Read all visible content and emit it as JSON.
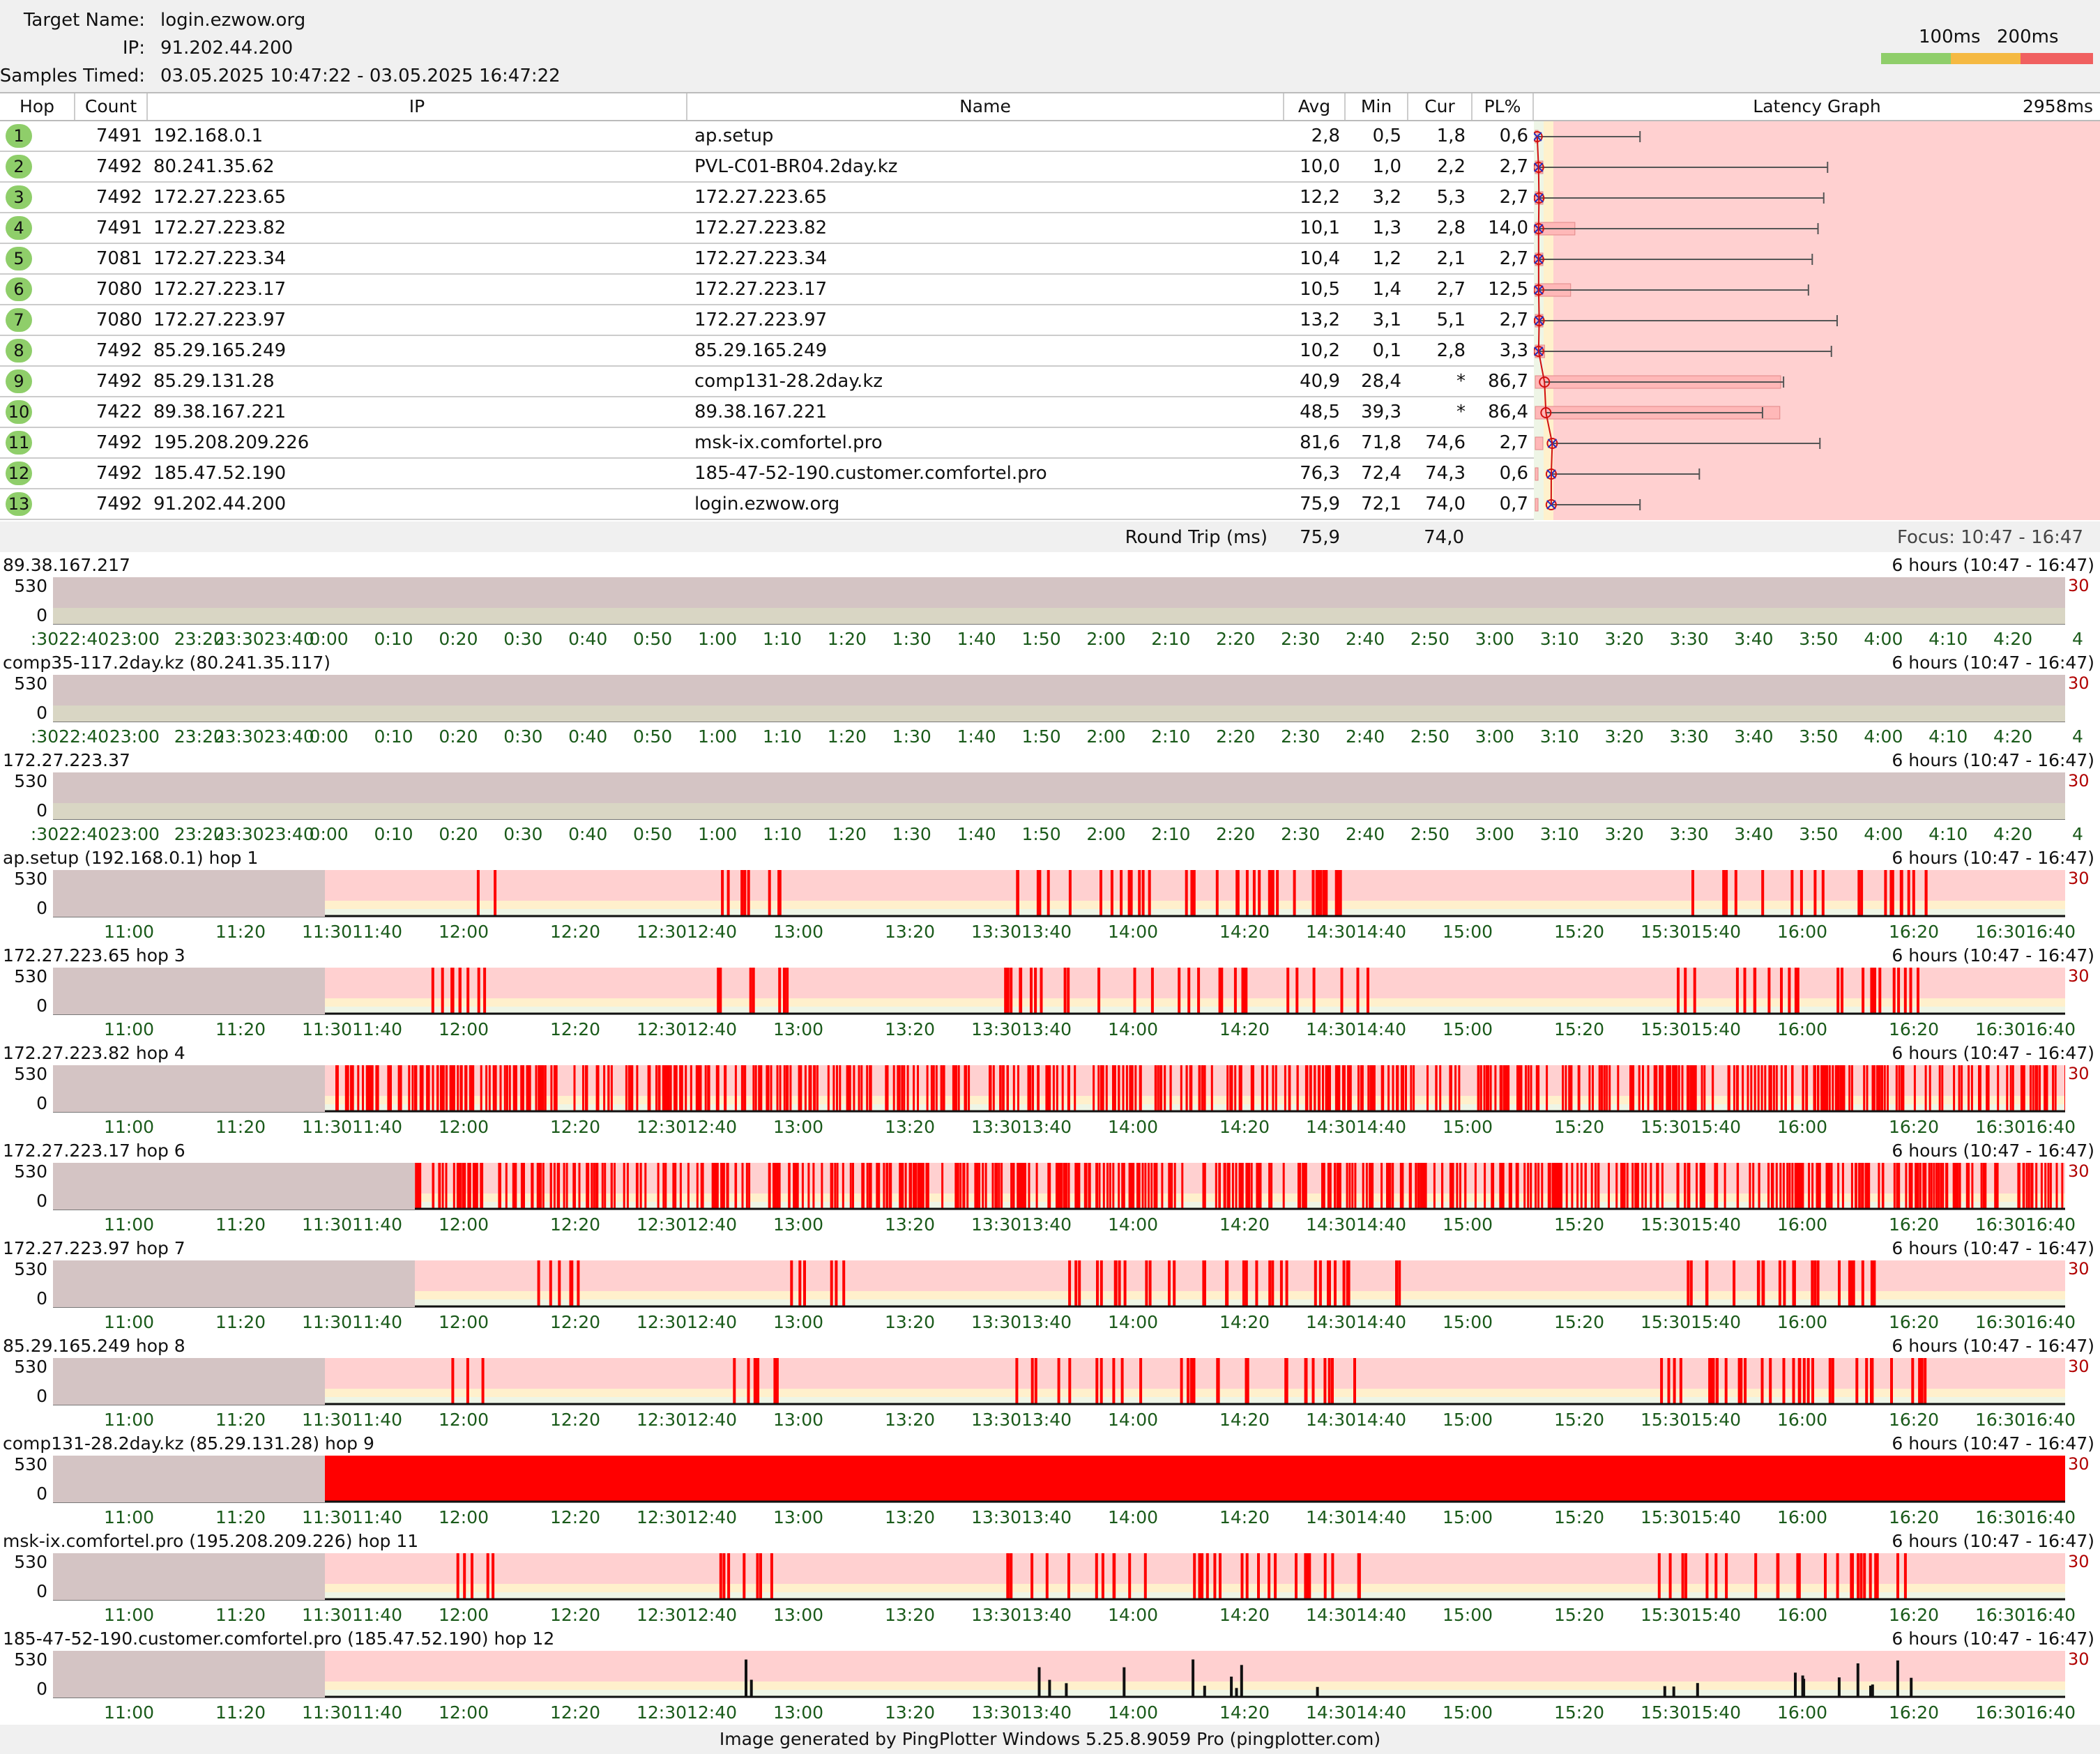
{
  "header": {
    "target_label": "Target Name:",
    "target_value": "login.ezwow.org",
    "ip_label": "IP:",
    "ip_value": "91.202.44.200",
    "samples_label": "Samples Timed:",
    "samples_value": "03.05.2025 10:47:22 - 03.05.2025 16:47:22",
    "legend_100": "100ms",
    "legend_200": "200ms",
    "colors": {
      "good": "#8fce6a",
      "warn": "#f5b942",
      "bad": "#f06060"
    }
  },
  "table": {
    "columns": [
      "Hop",
      "Count",
      "IP",
      "Name",
      "Avg",
      "Min",
      "Cur",
      "PL%",
      "Latency Graph"
    ],
    "graph_max": "2958ms",
    "rows": [
      {
        "hop": "1",
        "count": "7491",
        "ip": "192.168.0.1",
        "name": "ap.setup",
        "avg": "2,8",
        "min": "0,5",
        "cur": "1,8",
        "pl": "0,6",
        "pl_value": 0.6,
        "avg_ms": 2.8,
        "max_ms": 540
      },
      {
        "hop": "2",
        "count": "7492",
        "ip": "80.241.35.62",
        "name": "PVL-C01-BR04.2day.kz",
        "avg": "10,0",
        "min": "1,0",
        "cur": "2,2",
        "pl": "2,7",
        "pl_value": 2.7,
        "avg_ms": 10.0,
        "max_ms": 1520
      },
      {
        "hop": "3",
        "count": "7492",
        "ip": "172.27.223.65",
        "name": "172.27.223.65",
        "avg": "12,2",
        "min": "3,2",
        "cur": "5,3",
        "pl": "2,7",
        "pl_value": 2.7,
        "avg_ms": 12.2,
        "max_ms": 1500
      },
      {
        "hop": "4",
        "count": "7491",
        "ip": "172.27.223.82",
        "name": "172.27.223.82",
        "avg": "10,1",
        "min": "1,3",
        "cur": "2,8",
        "pl": "14,0",
        "pl_value": 14.0,
        "avg_ms": 10.1,
        "max_ms": 1470
      },
      {
        "hop": "5",
        "count": "7081",
        "ip": "172.27.223.34",
        "name": "172.27.223.34",
        "avg": "10,4",
        "min": "1,2",
        "cur": "2,1",
        "pl": "2,7",
        "pl_value": 2.7,
        "avg_ms": 10.4,
        "max_ms": 1440
      },
      {
        "hop": "6",
        "count": "7080",
        "ip": "172.27.223.17",
        "name": "172.27.223.17",
        "avg": "10,5",
        "min": "1,4",
        "cur": "2,7",
        "pl": "12,5",
        "pl_value": 12.5,
        "avg_ms": 10.5,
        "max_ms": 1420
      },
      {
        "hop": "7",
        "count": "7080",
        "ip": "172.27.223.97",
        "name": "172.27.223.97",
        "avg": "13,2",
        "min": "3,1",
        "cur": "5,1",
        "pl": "2,7",
        "pl_value": 2.7,
        "avg_ms": 13.2,
        "max_ms": 1570
      },
      {
        "hop": "8",
        "count": "7492",
        "ip": "85.29.165.249",
        "name": "85.29.165.249",
        "avg": "10,2",
        "min": "0,1",
        "cur": "2,8",
        "pl": "3,3",
        "pl_value": 3.3,
        "avg_ms": 10.2,
        "max_ms": 1540
      },
      {
        "hop": "9",
        "count": "7492",
        "ip": "85.29.131.28",
        "name": "comp131-28.2day.kz",
        "avg": "40,9",
        "min": "28,4",
        "cur": "*",
        "pl": "86,7",
        "pl_value": 86.7,
        "avg_ms": 40.9,
        "max_ms": 1290
      },
      {
        "hop": "10",
        "count": "7422",
        "ip": "89.38.167.221",
        "name": "89.38.167.221",
        "avg": "48,5",
        "min": "39,3",
        "cur": "*",
        "pl": "86,4",
        "pl_value": 86.4,
        "avg_ms": 48.5,
        "max_ms": 1180
      },
      {
        "hop": "11",
        "count": "7492",
        "ip": "195.208.209.226",
        "name": "msk-ix.comfortel.pro",
        "avg": "81,6",
        "min": "71,8",
        "cur": "74,6",
        "pl": "2,7",
        "pl_value": 2.7,
        "avg_ms": 81.6,
        "max_ms": 1480
      },
      {
        "hop": "12",
        "count": "7492",
        "ip": "185.47.52.190",
        "name": "185-47-52-190.customer.comfortel.pro",
        "avg": "76,3",
        "min": "72,4",
        "cur": "74,3",
        "pl": "0,6",
        "pl_value": 0.6,
        "avg_ms": 76.3,
        "max_ms": 850
      },
      {
        "hop": "13",
        "count": "7492",
        "ip": "91.202.44.200",
        "name": "login.ezwow.org",
        "avg": "75,9",
        "min": "72,1",
        "cur": "74,0",
        "pl": "0,7",
        "pl_value": 0.7,
        "avg_ms": 75.9,
        "max_ms": 540
      }
    ],
    "round_trip_label": "Round Trip (ms)",
    "round_trip_avg": "75,9",
    "round_trip_cur": "74,0",
    "focus": "Focus: 10:47 - 16:47"
  },
  "panels": {
    "range_label": "6 hours (10:47 - 16:47)",
    "y_top": "530",
    "y_bottom": "0",
    "right_label": "30",
    "ticks_night": [
      ":3022:40",
      "23:00",
      "23:20",
      "23:3023:40",
      "0:00",
      "0:10",
      "0:20",
      "0:30",
      "0:40",
      "0:50",
      "1:00",
      "1:10",
      "1:20",
      "1:30",
      "1:40",
      "1:50",
      "2:00",
      "2:10",
      "2:20",
      "2:30",
      "2:40",
      "2:50",
      "3:00",
      "3:10",
      "3:20",
      "3:30",
      "3:40",
      "3:50",
      "4:00",
      "4:10",
      "4:20",
      "4"
    ],
    "ticks_day": [
      "11:00",
      "11:20",
      "11:3011:40",
      "12:00",
      "12:20",
      "12:3012:40",
      "13:00",
      "13:20",
      "13:3013:40",
      "14:00",
      "14:20",
      "14:3014:40",
      "15:00",
      "15:20",
      "15:3015:40",
      "16:00",
      "16:20",
      "16:3016:40"
    ],
    "items": [
      {
        "title": "89.38.167.217",
        "kind": "empty"
      },
      {
        "title": "comp35-117.2day.kz (80.241.35.117)",
        "kind": "empty"
      },
      {
        "title": "172.27.223.37",
        "kind": "empty"
      },
      {
        "title": "ap.setup (192.168.0.1) hop 1",
        "kind": "sparse",
        "gap": 0.135
      },
      {
        "title": "172.27.223.65 hop 3",
        "kind": "sparse",
        "gap": 0.135
      },
      {
        "title": "172.27.223.82 hop 4",
        "kind": "dense",
        "gap": 0.135
      },
      {
        "title": "172.27.223.17 hop 6",
        "kind": "dense",
        "gap": 0.18
      },
      {
        "title": "172.27.223.97 hop 7",
        "kind": "sparse",
        "gap": 0.18
      },
      {
        "title": "85.29.165.249 hop 8",
        "kind": "sparse",
        "gap": 0.135
      },
      {
        "title": "comp131-28.2day.kz (85.29.131.28) hop 9",
        "kind": "full",
        "gap": 0.135
      },
      {
        "title": "msk-ix.comfortel.pro (195.208.209.226) hop 11",
        "kind": "sparse",
        "gap": 0.135
      },
      {
        "title": "185-47-52-190.customer.comfortel.pro (185.47.52.190) hop 12",
        "kind": "light",
        "gap": 0.135
      }
    ]
  },
  "footer": "Image generated by PingPlotter Windows 5.25.8.9059 Pro (pingplotter.com)"
}
